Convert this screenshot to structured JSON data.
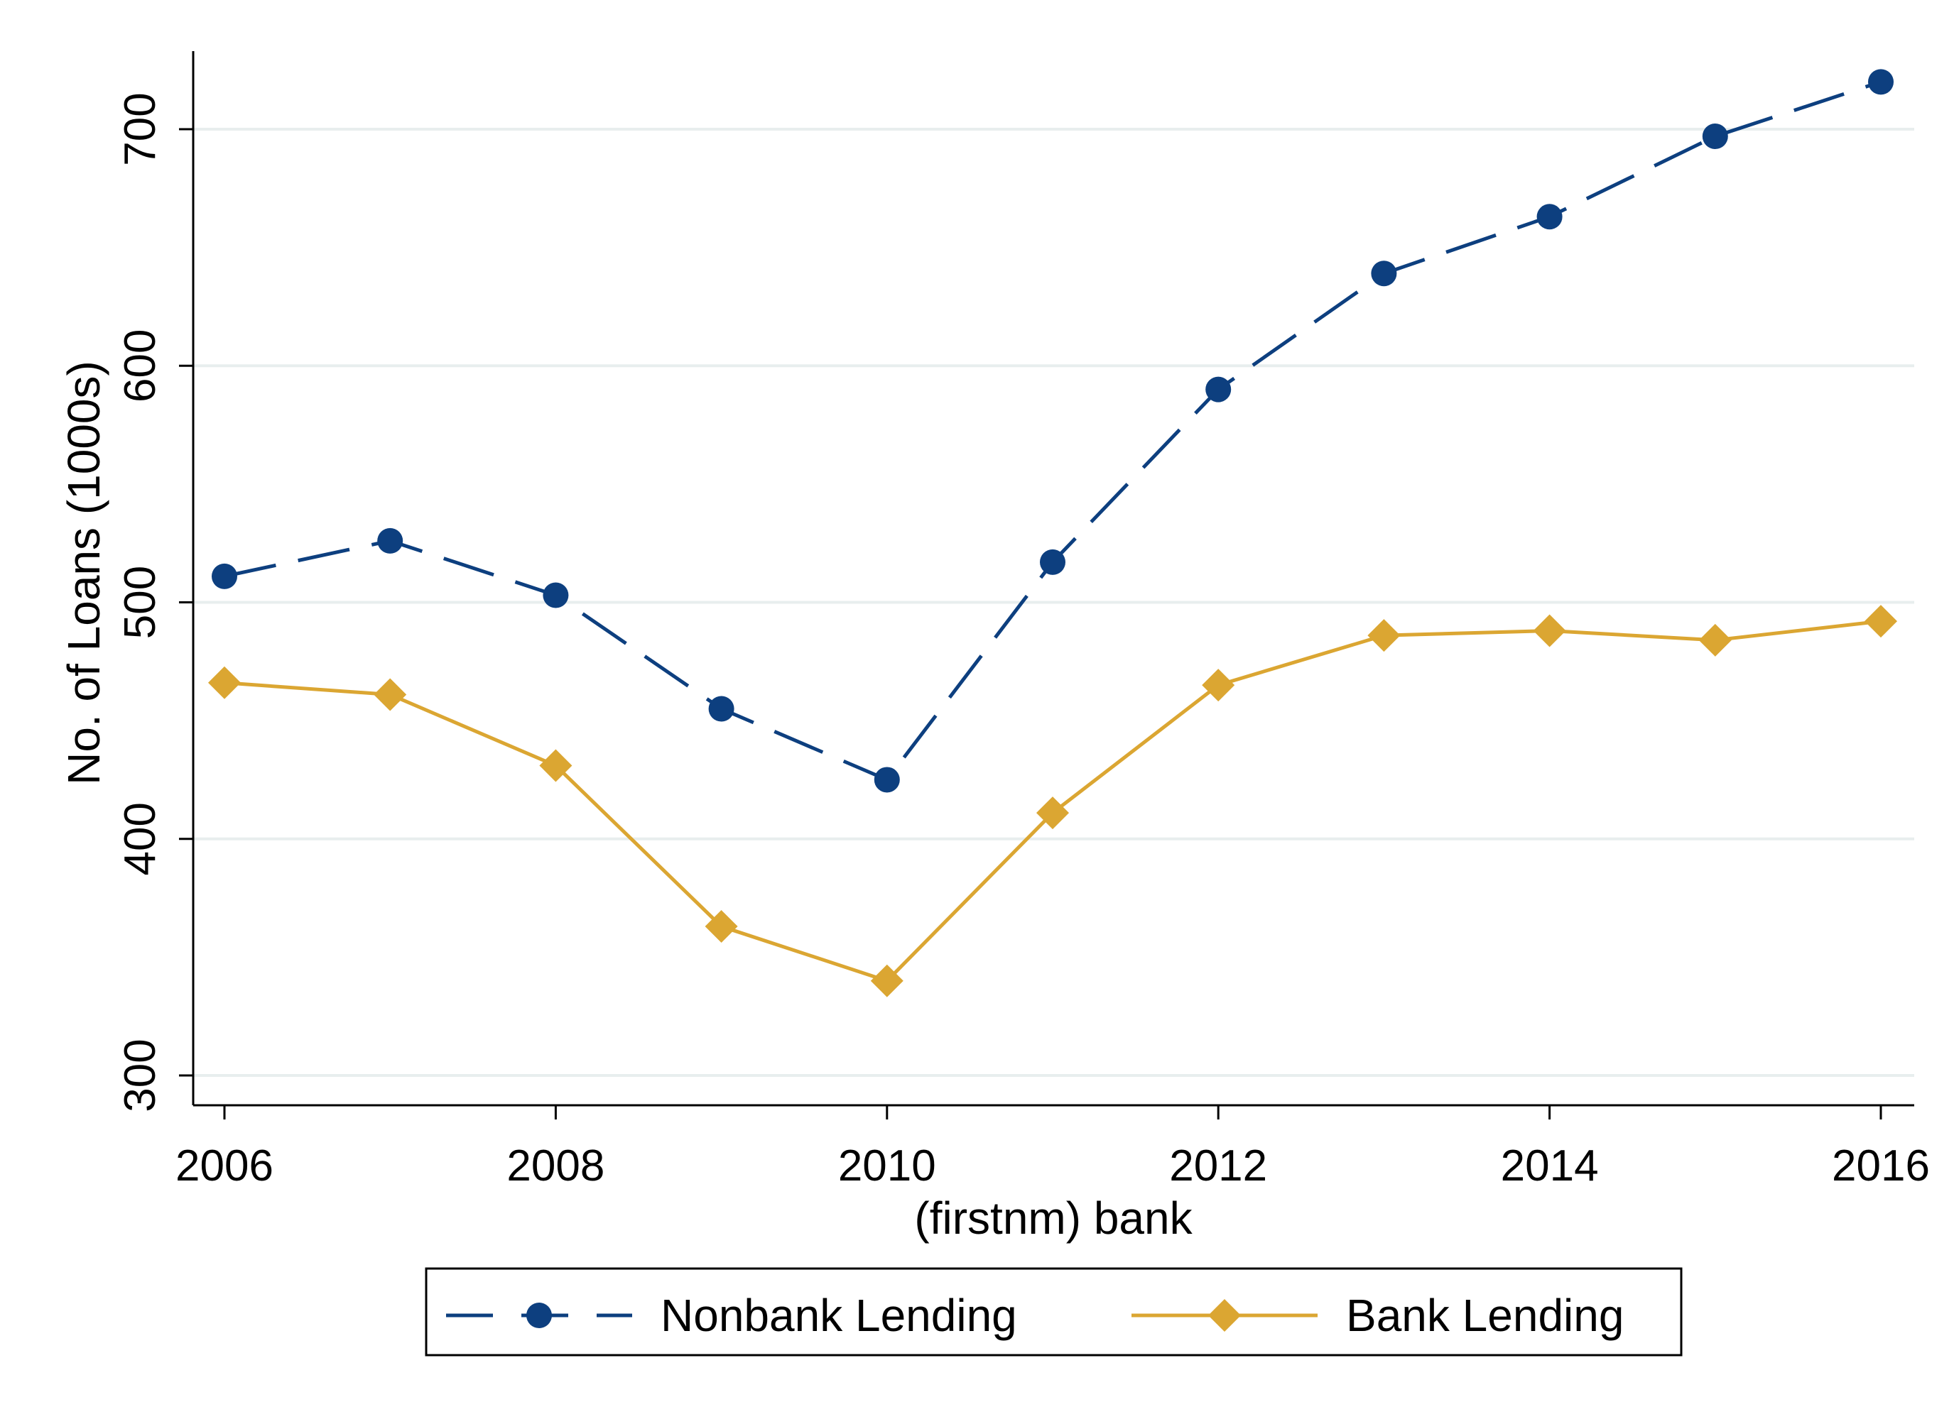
{
  "chart_data": {
    "type": "line",
    "title": "",
    "xlabel": "(firstnm) bank",
    "ylabel": "No. of Loans (1000s)",
    "xlim": [
      2006,
      2016
    ],
    "ylim": [
      300,
      700
    ],
    "x_ticks": [
      "2006",
      "2008",
      "2010",
      "2012",
      "2014",
      "2016"
    ],
    "y_ticks": [
      "300",
      "400",
      "500",
      "600",
      "700"
    ],
    "grid": "horizontal",
    "legend_position": "bottom",
    "x": [
      2006,
      2007,
      2008,
      2009,
      2010,
      2011,
      2012,
      2013,
      2014,
      2015,
      2016
    ],
    "series": [
      {
        "name": "Nonbank Lending",
        "color": "#0d3f7f",
        "marker": "circle",
        "line_style": "dashed",
        "values": [
          511,
          526,
          503,
          455,
          425,
          517,
          590,
          639,
          663,
          697,
          720
        ]
      },
      {
        "name": "Bank Lending",
        "color": "#dba632",
        "marker": "diamond",
        "line_style": "solid",
        "values": [
          466,
          461,
          431,
          363,
          340,
          411,
          465,
          486,
          488,
          484,
          492
        ]
      }
    ]
  }
}
